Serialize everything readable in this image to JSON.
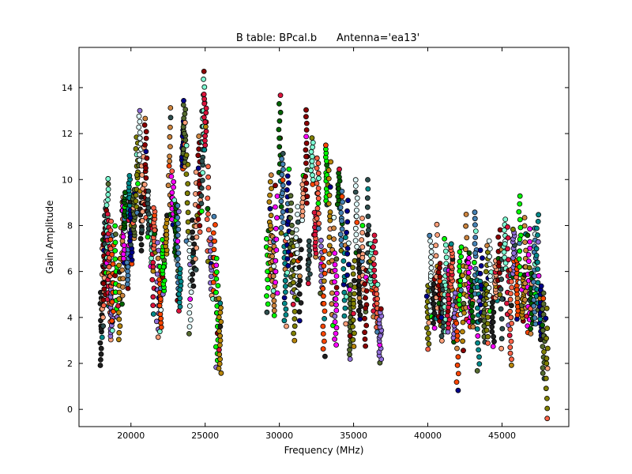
{
  "chart_data": {
    "type": "scatter",
    "title": "B table: BPcal.b      Antenna='ea13'",
    "xlabel": "Frequency (MHz)",
    "ylabel": "Gain Amplitude",
    "xlim": [
      16500,
      49500
    ],
    "ylim": [
      -0.75,
      15.75
    ],
    "xticks": [
      20000,
      25000,
      30000,
      35000,
      40000,
      45000
    ],
    "yticks": [
      0,
      2,
      4,
      6,
      8,
      10,
      12,
      14
    ],
    "grid": false,
    "marker": "circle",
    "marker_edge_color": "#000000",
    "palette": [
      "#1f1f1f",
      "#2f4f4f",
      "#ff6347",
      "#00ff00",
      "#ff00ff",
      "#008b8b",
      "#808000",
      "#ffa07a",
      "#7fffd4",
      "#9370db",
      "#b8860b",
      "#006400",
      "#00008b",
      "#e0ffff",
      "#8b0000",
      "#dc143c",
      "#ff4500",
      "#cd853f",
      "#4682b4",
      "#556b2f"
    ],
    "series": [
      {
        "x": [
          18000,
          18120,
          18200,
          18300,
          18400,
          18500,
          18600,
          18700,
          18800,
          19000,
          19200,
          19400,
          19500,
          19600,
          19800,
          19900,
          20000,
          20200,
          20400,
          20600,
          20700,
          20800,
          21000,
          21200,
          21400,
          21500,
          21600,
          21800,
          22000,
          22200,
          22400,
          22600,
          22800,
          23000,
          23200,
          23300,
          23500,
          23600,
          23800,
          24000,
          24200,
          24400,
          24600,
          24800,
          24900,
          25000,
          25200,
          25400,
          25600,
          25800,
          26000
        ],
        "y": [
          3.5,
          5.5,
          6.2,
          7.5,
          8.2,
          6.5,
          5.8,
          4.2,
          5.5,
          6.0,
          4.8,
          6.8,
          7.8,
          8.6,
          6.2,
          9.2,
          7.5,
          8.5,
          10.2,
          11.8,
          8.2,
          9.6,
          10.5,
          8.5,
          7.2,
          6.2,
          7.8,
          5.2,
          4.8,
          6.2,
          7.6,
          10.8,
          9.2,
          7.8,
          6.8,
          5.2,
          11.5,
          12.0,
          9.4,
          5.4,
          6.8,
          8.2,
          9.8,
          10.8,
          13.0,
          12.5,
          8.5,
          6.2,
          6.6,
          4.2,
          3.2
        ]
      },
      {
        "x": [
          29200,
          29400,
          29600,
          29800,
          30000,
          30200,
          30400,
          30600,
          30800,
          31000,
          31200,
          31400,
          31600,
          31800,
          32000,
          32200,
          32400,
          32600,
          32800,
          33000,
          33200,
          33400,
          33600,
          33800,
          34000,
          34200,
          34400,
          34600,
          34800,
          35000,
          35200,
          35400,
          35600,
          35800,
          36000,
          36200,
          36400,
          36600,
          36800
        ],
        "y": [
          6.0,
          8.0,
          5.8,
          7.4,
          11.8,
          9.4,
          5.6,
          8.2,
          7.2,
          5.2,
          6.8,
          5.6,
          9.2,
          11.0,
          6.4,
          10.8,
          7.6,
          9.4,
          6.2,
          4.6,
          10.2,
          8.4,
          6.0,
          4.8,
          9.6,
          8.2,
          5.6,
          7.0,
          3.8,
          4.6,
          8.4,
          5.4,
          6.6,
          4.4,
          7.8,
          6.2,
          5.8,
          4.4,
          3.2
        ]
      },
      {
        "x": [
          40000,
          40200,
          40400,
          40600,
          40800,
          41000,
          41200,
          41400,
          41600,
          41800,
          42000,
          42200,
          42400,
          42600,
          42800,
          43000,
          43200,
          43400,
          43600,
          43800,
          44000,
          44200,
          44400,
          44600,
          44800,
          45000,
          45200,
          45400,
          45600,
          45800,
          46000,
          46200,
          46400,
          46600,
          46800,
          47000,
          47200,
          47400,
          47600,
          47800,
          48000
        ],
        "y": [
          4.0,
          5.8,
          4.6,
          6.0,
          5.0,
          4.2,
          5.4,
          4.8,
          6.2,
          4.0,
          3.2,
          5.6,
          4.4,
          6.2,
          5.2,
          4.6,
          6.8,
          3.8,
          5.4,
          4.2,
          5.0,
          5.8,
          3.8,
          5.6,
          6.4,
          4.8,
          7.2,
          5.8,
          4.0,
          6.8,
          5.2,
          7.4,
          4.8,
          6.2,
          5.6,
          4.6,
          5.8,
          6.4,
          4.2,
          3.2,
          2.0
        ]
      }
    ]
  }
}
